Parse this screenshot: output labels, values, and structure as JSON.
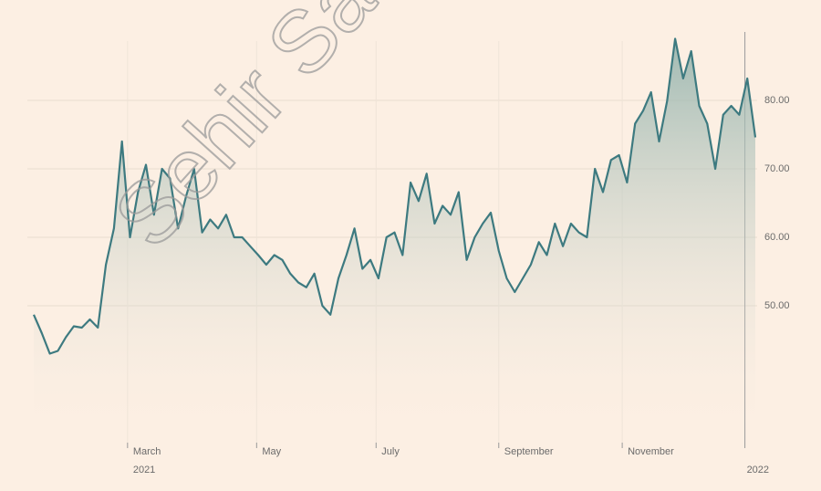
{
  "chart_data": {
    "type": "area",
    "watermark": "Sehir Sanay",
    "series": [
      {
        "color": "#3d7a80",
        "values": [
          48.7,
          46,
          43,
          43.4,
          45.4,
          47,
          46.8,
          48,
          46.8,
          56,
          61.3,
          74,
          60,
          66.6,
          70.6,
          63.3,
          70,
          68.6,
          61.3,
          66,
          70,
          60.7,
          62.6,
          61.3,
          63.3,
          60,
          60,
          58.7,
          57.4,
          56,
          57.4,
          56.7,
          54.7,
          53.4,
          52.7,
          54.7,
          50,
          48.7,
          54,
          57.4,
          61.3,
          55.4,
          56.7,
          54,
          60,
          60.7,
          57.4,
          68,
          65.3,
          69.3,
          62,
          64.6,
          63.3,
          66.6,
          56.7,
          60,
          62,
          63.6,
          58,
          54,
          52,
          54,
          56,
          59.3,
          57.4,
          62,
          58.7,
          62,
          60.7,
          60,
          70,
          66.6,
          71.3,
          72,
          68,
          76.6,
          78.5,
          81.2,
          74,
          79.9,
          89,
          83.2,
          87.2,
          79.2,
          76.6,
          70,
          77.9,
          79.2,
          77.9,
          83.2,
          74.6
        ]
      }
    ],
    "xlim": [
      0,
      90
    ],
    "xticks": [
      {
        "value": 11.7,
        "label": "March"
      },
      {
        "value": 27.8,
        "label": "May"
      },
      {
        "value": 42.7,
        "label": "July"
      },
      {
        "value": 58,
        "label": "September"
      },
      {
        "value": 73.4,
        "label": "November"
      },
      {
        "value": 88.7,
        "label": "2022"
      }
    ],
    "x_sublabels": [
      {
        "value": 11.7,
        "label": "2021"
      }
    ],
    "ylim": [
      30,
      90
    ],
    "yticks": [
      {
        "value": 50,
        "label": "50.00"
      },
      {
        "value": 60,
        "label": "60.00"
      },
      {
        "value": 70,
        "label": "70.00"
      },
      {
        "value": 80,
        "label": "80.00"
      }
    ],
    "grid": true
  }
}
